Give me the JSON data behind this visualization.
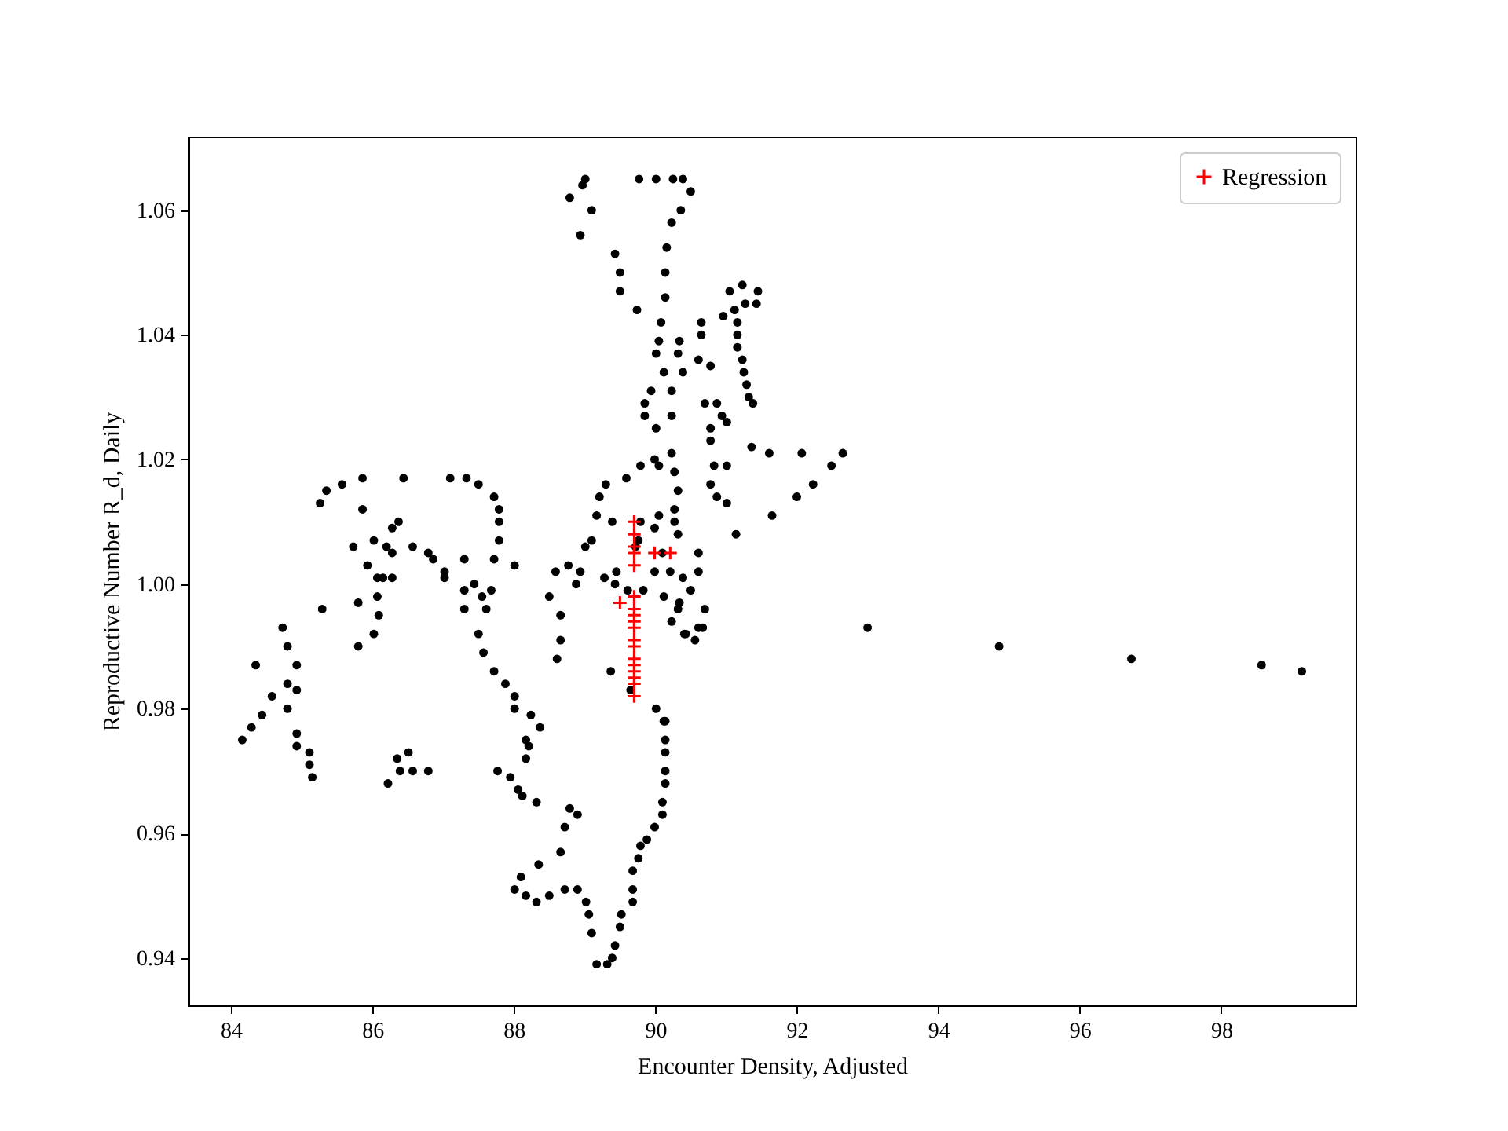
{
  "chart_data": {
    "type": "scatter",
    "xlabel": "Encounter Density, Adjusted",
    "ylabel": "Reproductive Number R_d, Daily",
    "xlim": [
      83.4,
      99.9
    ],
    "ylim": [
      0.9324,
      1.0718
    ],
    "xticks": [
      84,
      86,
      88,
      90,
      92,
      94,
      96,
      98
    ],
    "yticks": [
      {
        "value": 0.94,
        "label": "0.94"
      },
      {
        "value": 0.96,
        "label": "0.96"
      },
      {
        "value": 0.98,
        "label": "0.98"
      },
      {
        "value": 1,
        "label": "1.00"
      },
      {
        "value": 1.02,
        "label": "1.02"
      },
      {
        "value": 1.04,
        "label": "1.04"
      },
      {
        "value": 1.06,
        "label": "1.06"
      }
    ],
    "grid": false,
    "legend": "top right",
    "series": [
      {
        "color": "#000000",
        "marker": "circle",
        "x": [
          84.16,
          84.29,
          84.44,
          84.58,
          84.35,
          84.73,
          84.8,
          84.93,
          84.8,
          84.93,
          84.8,
          84.93,
          84.93,
          85.11,
          85.11,
          85.15,
          85.29,
          85.26,
          85.35,
          85.57,
          85.86,
          85.86,
          85.73,
          85.93,
          86.02,
          86.07,
          86.15,
          86.07,
          85.8,
          86.09,
          86.02,
          85.8,
          86.28,
          86.37,
          86.28,
          86.2,
          86.28,
          86.44,
          86.57,
          86.79,
          86.86,
          87.02,
          87.02,
          86.35,
          86.51,
          86.57,
          86.22,
          86.79,
          86.39,
          87.1,
          87.33,
          87.5,
          87.72,
          87.79,
          87.79,
          87.79,
          87.72,
          88.01,
          87.3,
          87.44,
          87.3,
          87.3,
          87.55,
          87.68,
          87.61,
          87.5,
          87.57,
          87.72,
          87.88,
          88.01,
          88.01,
          88.24,
          88.37,
          88.17,
          88.21,
          88.17,
          87.77,
          87.95,
          88.06,
          88.12,
          88.32,
          88.79,
          88.9,
          88.72,
          88.66,
          88.35,
          88.1,
          88.01,
          88.17,
          88.32,
          88.5,
          88.72,
          88.9,
          89.02,
          89.06,
          89.1,
          89.17,
          89.32,
          89.39,
          89.43,
          89.5,
          89.52,
          89.68,
          89.68,
          89.68,
          89.76,
          89.79,
          89.88,
          89.99,
          90.1,
          90.1,
          90.14,
          90.14,
          90.14,
          90.14,
          90.14,
          90.01,
          89.65,
          89.37,
          88.61,
          88.66,
          88.66,
          88.5,
          88.59,
          88.77,
          88.88,
          88.94,
          89.01,
          89.1,
          89.17,
          89.3,
          89.59,
          89.79,
          89.99,
          89.01,
          88.97,
          88.79,
          89.1,
          88.94,
          89.43,
          89.5,
          89.5,
          89.74,
          89.77,
          90.01,
          90.25,
          90.39,
          90.5,
          90.36,
          90.23,
          90.16,
          90.14,
          90.14,
          90.08,
          90.65,
          90.65,
          90.05,
          90.34,
          90.01,
          90.32,
          90.61,
          90.78,
          90.39,
          90.12,
          89.94,
          90.23,
          89.85,
          89.85,
          90.23,
          90.01,
          90.7,
          90.87,
          90.94,
          91.01,
          90.78,
          90.78,
          91.05,
          91.23,
          91.45,
          91.43,
          91.27,
          91.12,
          90.96,
          91.16,
          91.16,
          91.16,
          91.23,
          91.25,
          91.29,
          91.32,
          91.38,
          91.36,
          91.61,
          92.07,
          92.65,
          92.49,
          92.23,
          92.0,
          91.65,
          91.14,
          91.01,
          90.83,
          90.78,
          90.87,
          91.01,
          90.61,
          90.61,
          90.7,
          90.61,
          90.56,
          90.43,
          90.34,
          90.23,
          90.05,
          90.27,
          90.32,
          90.27,
          90.05,
          89.21,
          89.39,
          89.79,
          90.27,
          90.32,
          89.99,
          89.72,
          89.45,
          89.28,
          89.43,
          89.61,
          89.83,
          89.76,
          90.1,
          89.99,
          90.21,
          90.39,
          90.12,
          90.32,
          90.5,
          90.23,
          90.41,
          90.67,
          90.12,
          93.0,
          94.86,
          96.73,
          98.57,
          99.14
        ],
        "values": [
          0.975,
          0.977,
          0.979,
          0.982,
          0.987,
          0.993,
          0.99,
          0.987,
          0.984,
          0.983,
          0.98,
          0.976,
          0.974,
          0.973,
          0.971,
          0.969,
          0.996,
          1.013,
          1.015,
          1.016,
          1.017,
          1.012,
          1.006,
          1.003,
          1.007,
          1.001,
          1.001,
          0.998,
          0.997,
          0.995,
          0.992,
          0.99,
          1.001,
          1.01,
          1.009,
          1.006,
          1.005,
          1.017,
          1.006,
          1.005,
          1.004,
          1.002,
          1.001,
          0.972,
          0.973,
          0.97,
          0.968,
          0.97,
          0.97,
          1.017,
          1.017,
          1.016,
          1.014,
          1.012,
          1.01,
          1.007,
          1.004,
          1.003,
          1.004,
          1.0,
          0.999,
          0.996,
          0.998,
          0.999,
          0.996,
          0.992,
          0.989,
          0.986,
          0.984,
          0.982,
          0.98,
          0.979,
          0.977,
          0.975,
          0.974,
          0.972,
          0.97,
          0.969,
          0.967,
          0.966,
          0.965,
          0.964,
          0.963,
          0.961,
          0.957,
          0.955,
          0.953,
          0.951,
          0.95,
          0.949,
          0.95,
          0.951,
          0.951,
          0.949,
          0.947,
          0.944,
          0.939,
          0.939,
          0.94,
          0.942,
          0.945,
          0.947,
          0.949,
          0.951,
          0.954,
          0.956,
          0.958,
          0.959,
          0.961,
          0.963,
          0.965,
          0.968,
          0.97,
          0.973,
          0.975,
          0.978,
          0.98,
          0.983,
          0.986,
          0.988,
          0.991,
          0.995,
          0.998,
          1.002,
          1.003,
          1.0,
          1.002,
          1.006,
          1.007,
          1.011,
          1.016,
          1.017,
          1.019,
          1.02,
          1.065,
          1.064,
          1.062,
          1.06,
          1.056,
          1.053,
          1.05,
          1.047,
          1.044,
          1.065,
          1.065,
          1.065,
          1.065,
          1.063,
          1.06,
          1.058,
          1.054,
          1.05,
          1.046,
          1.042,
          1.042,
          1.04,
          1.039,
          1.039,
          1.037,
          1.037,
          1.036,
          1.035,
          1.034,
          1.034,
          1.031,
          1.031,
          1.029,
          1.027,
          1.027,
          1.025,
          1.029,
          1.029,
          1.027,
          1.026,
          1.025,
          1.023,
          1.047,
          1.048,
          1.047,
          1.045,
          1.045,
          1.044,
          1.043,
          1.042,
          1.04,
          1.038,
          1.036,
          1.034,
          1.032,
          1.03,
          1.029,
          1.022,
          1.021,
          1.021,
          1.021,
          1.019,
          1.016,
          1.014,
          1.011,
          1.008,
          1.019,
          1.019,
          1.016,
          1.014,
          1.013,
          1.005,
          1.002,
          0.996,
          0.993,
          0.991,
          0.992,
          0.997,
          1.021,
          1.019,
          1.018,
          1.015,
          1.012,
          1.011,
          1.014,
          1.01,
          1.01,
          1.01,
          1.008,
          1.009,
          1.006,
          1.002,
          1.001,
          1.0,
          0.999,
          0.999,
          1.007,
          1.005,
          1.002,
          1.002,
          1.001,
          0.998,
          0.996,
          0.999,
          0.994,
          0.992,
          0.993,
          0.978,
          0.993,
          0.99,
          0.988,
          0.987,
          0.986
        ]
      },
      {
        "name": "Regression",
        "color": "#ff0000",
        "marker": "cross",
        "x": [
          89.7,
          89.7,
          89.7,
          89.7,
          89.7,
          89.99,
          90.21,
          89.5,
          89.7,
          89.7,
          89.7,
          89.7,
          89.7,
          89.7,
          89.7,
          89.7,
          89.7,
          89.7,
          89.7,
          89.7,
          89.7
        ],
        "values": [
          1.01,
          1.008,
          1.006,
          1.005,
          1.003,
          1.005,
          1.005,
          0.997,
          0.998,
          0.996,
          0.995,
          0.994,
          0.993,
          0.991,
          0.99,
          0.988,
          0.987,
          0.986,
          0.985,
          0.984,
          0.982
        ]
      }
    ]
  }
}
